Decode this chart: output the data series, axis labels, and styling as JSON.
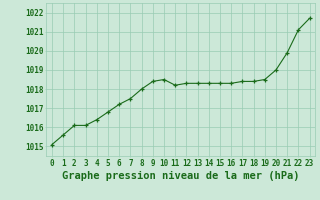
{
  "x": [
    0,
    1,
    2,
    3,
    4,
    5,
    6,
    7,
    8,
    9,
    10,
    11,
    12,
    13,
    14,
    15,
    16,
    17,
    18,
    19,
    20,
    21,
    22,
    23
  ],
  "y": [
    1015.1,
    1015.6,
    1016.1,
    1016.1,
    1016.4,
    1016.8,
    1017.2,
    1017.5,
    1018.0,
    1018.4,
    1018.5,
    1018.2,
    1018.3,
    1018.3,
    1018.3,
    1018.3,
    1018.3,
    1018.4,
    1018.4,
    1018.5,
    1019.0,
    1019.9,
    1021.1,
    1021.7
  ],
  "ylim": [
    1014.5,
    1022.5
  ],
  "yticks": [
    1015,
    1016,
    1017,
    1018,
    1019,
    1020,
    1021,
    1022
  ],
  "xticks": [
    0,
    1,
    2,
    3,
    4,
    5,
    6,
    7,
    8,
    9,
    10,
    11,
    12,
    13,
    14,
    15,
    16,
    17,
    18,
    19,
    20,
    21,
    22,
    23
  ],
  "xlabel": "Graphe pression niveau de la mer (hPa)",
  "line_color": "#1a6b1a",
  "marker": "+",
  "marker_color": "#1a6b1a",
  "bg_color": "#cce8d8",
  "grid_color": "#99ccb3",
  "tick_label_color": "#1a6b1a",
  "xlabel_color": "#1a6b1a",
  "xlabel_fontsize": 7.5,
  "tick_fontsize": 5.5
}
